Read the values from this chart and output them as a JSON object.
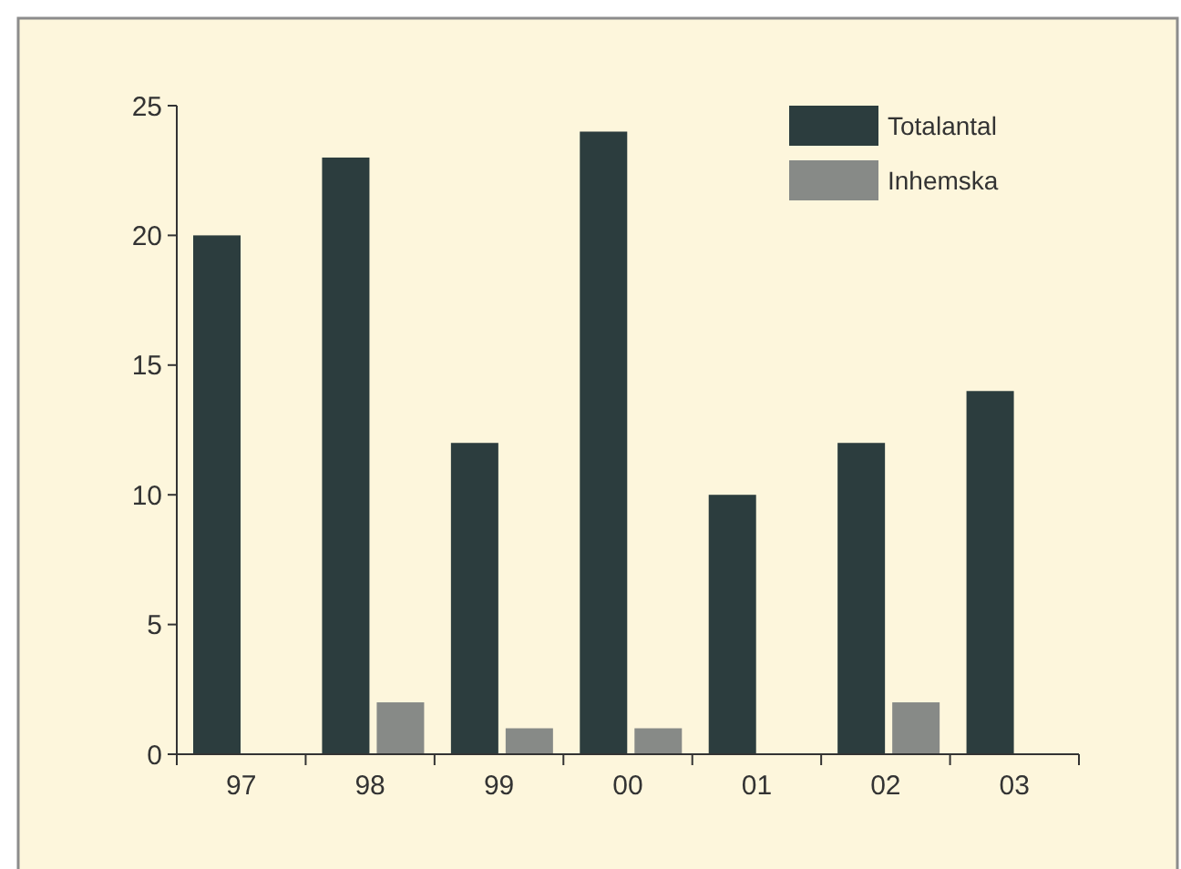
{
  "chart_data": {
    "type": "bar",
    "categories": [
      "97",
      "98",
      "99",
      "00",
      "01",
      "02",
      "03"
    ],
    "series": [
      {
        "name": "Totalantal",
        "color": "#2c3d3e",
        "values": [
          20,
          23,
          12,
          24,
          10,
          12,
          14
        ]
      },
      {
        "name": "Inhemska",
        "color": "#878a87",
        "values": [
          0,
          2,
          1,
          1,
          0,
          2,
          0
        ]
      }
    ],
    "ylim": [
      0,
      25
    ],
    "yticks": [
      0,
      5,
      10,
      15,
      20,
      25
    ],
    "grid": false,
    "legend": "top right"
  }
}
